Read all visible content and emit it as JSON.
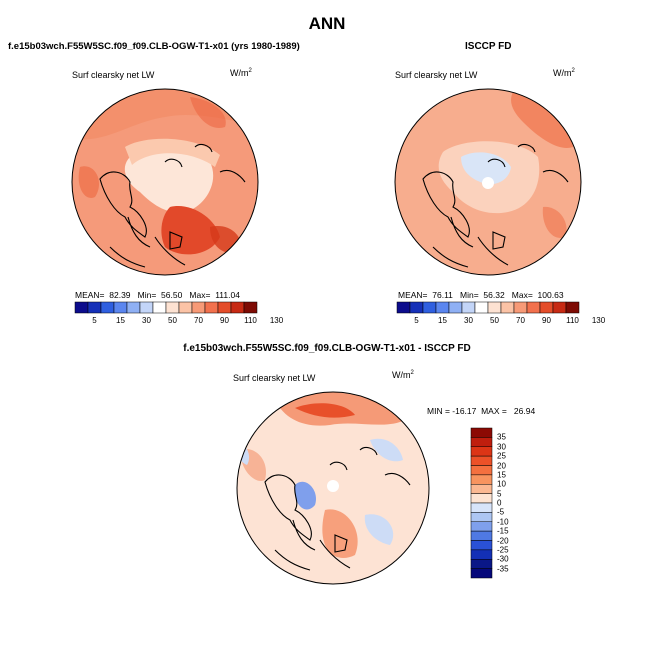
{
  "title": "ANN",
  "panels": [
    {
      "id": "model",
      "heading": "f.e15b03wch.F55W5SC.f09_f09.CLB-OGW-T1-x01 (yrs 1980-1989)",
      "variable": "Surf clearsky net LW",
      "units_base": "W/m",
      "units_exp": "2",
      "stats": {
        "mean_label": "MEAN=",
        "mean": "82.39",
        "min_label": "Min=",
        "min": "56.50",
        "max_label": "Max=",
        "max": "111.04"
      }
    },
    {
      "id": "obs",
      "heading": "ISCCP FD",
      "variable": "Surf clearsky net LW",
      "units_base": "W/m",
      "units_exp": "2",
      "stats": {
        "mean_label": "MEAN=",
        "mean": "76.11",
        "min_label": "Min=",
        "min": "56.32",
        "max_label": "Max=",
        "max": "100.63"
      }
    }
  ],
  "abs_colorbar": {
    "labels": [
      "5",
      "15",
      "30",
      "50",
      "70",
      "90",
      "110",
      "130"
    ],
    "colors": [
      "#0c0c8c",
      "#1530b8",
      "#2f5fe0",
      "#5b86ef",
      "#8fb0f4",
      "#c3d5f8",
      "#ffffff",
      "#fde2d2",
      "#fbc3a6",
      "#f79a77",
      "#f2714d",
      "#e44d2a",
      "#c72a14",
      "#7e0b04"
    ]
  },
  "diff_panel": {
    "heading": "f.e15b03wch.F55W5SC.f09_f09.CLB-OGW-T1-x01 - ISCCP FD",
    "variable": "Surf clearsky net LW",
    "units_base": "W/m",
    "units_exp": "2",
    "minmax": "MIN = -16.17  MAX =   26.94"
  },
  "diff_colorbar": {
    "labels": [
      "35",
      "30",
      "25",
      "20",
      "15",
      "10",
      "5",
      "0",
      "-5",
      "-10",
      "-15",
      "-20",
      "-25",
      "-30",
      "-35"
    ],
    "colors": [
      "#8c0a04",
      "#bf1e0e",
      "#dc3516",
      "#ec5128",
      "#f4703f",
      "#f8945f",
      "#fbb892",
      "#fde3d2",
      "#d7e4fa",
      "#adc6f3",
      "#7fa0ec",
      "#4f79e3",
      "#2a51d6",
      "#1330b6",
      "#0a1787",
      "#05087a"
    ]
  },
  "map_colors": {
    "model": {
      "base": "#f59a7a",
      "pole": "#fde6d8",
      "warm": "#ec5a36",
      "hot": "#d63a1a",
      "coast": "#000000"
    },
    "obs": {
      "base": "#f7ad8e",
      "pole": "#fde8dc",
      "warm": "#f07a55",
      "cool": "#d9e5f7",
      "coast": "#000000"
    },
    "diff": {
      "base": "#fde3d4",
      "warm": "#f7a07c",
      "hot": "#e8502a",
      "cool": "#cddcf6",
      "blue": "#7f9fec",
      "coast": "#000000"
    }
  }
}
